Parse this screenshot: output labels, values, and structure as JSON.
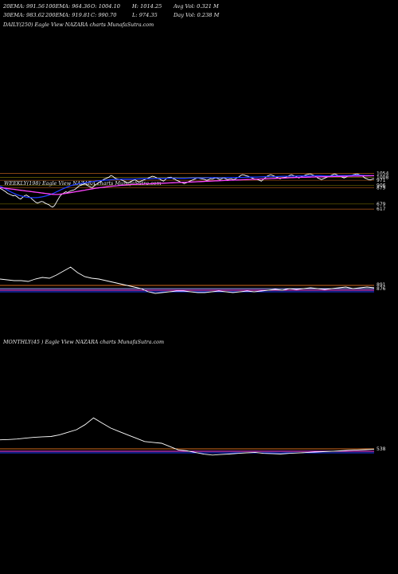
{
  "header": {
    "row1": [
      "20EMA: 991.56",
      "100EMA: 964.36",
      "O: 1004.10",
      "H: 1014.25",
      "Avg Vol: 0.321 M"
    ],
    "row2": [
      "30EMA: 983.62",
      "200EMA: 919.81",
      "C: 990.70",
      "L: 974.35",
      "Day Vol: 0.238 M"
    ]
  },
  "daily_label": "DAILY(250) Eagle  View  NAZARA charts MunafaSutra.com",
  "weekly_label": "WEEKLY(198) Eagle  View  NAZARA charts MunafaSutra.com",
  "monthly_label": "MONTHLY(45                    ) Eagle  View  NAZARA charts MunafaSutra.com",
  "colors": {
    "price": "#ffffff",
    "ema_fast": "#1e3cff",
    "ema_slow": "#ff44ff",
    "ema_mid": "#9aa0ff",
    "orange": "#d2691e",
    "olive": "#8b8000"
  },
  "chart_data": [
    {
      "type": "line",
      "title": "WEEKLY(198) Eagle View NAZARA charts MunafaSutra.com",
      "y_ticks": [
        "1054",
        "1008",
        "971",
        "906",
        "879",
        "679",
        "617"
      ],
      "y_tick_values": [
        1054,
        1008,
        971,
        906,
        879,
        679,
        617
      ],
      "ylim": [
        560,
        1090
      ],
      "series": [
        {
          "values": [
            870,
            860,
            845,
            830,
            810,
            800,
            790,
            780,
            785,
            770,
            750,
            740,
            760,
            780,
            790,
            775,
            760,
            740,
            720,
            700,
            690,
            700,
            710,
            705,
            690,
            680,
            670,
            650,
            640,
            660,
            700,
            740,
            780,
            800,
            815,
            830,
            820,
            835,
            845,
            850,
            860,
            880,
            900,
            910,
            920,
            930,
            915,
            900,
            890,
            880,
            900,
            920,
            930,
            950,
            960,
            980,
            990,
            1000,
            1010,
            1030,
            1020,
            1000,
            990,
            985,
            980,
            970,
            960,
            950,
            940,
            950,
            960,
            970,
            975,
            960,
            950,
            960,
            970,
            980,
            990,
            1000,
            1010,
            1020,
            1015,
            1005,
            990,
            985,
            970,
            960,
            980,
            1000,
            1005,
            1010,
            990,
            985,
            970,
            960,
            950,
            940,
            930,
            940,
            950,
            960,
            970,
            980,
            990,
            1000,
            995,
            990,
            985,
            980,
            970,
            980,
            990,
            985,
            995,
            1000,
            990,
            980,
            990,
            1000,
            990,
            980,
            985,
            990,
            980,
            985,
            1000,
            1010,
            1030,
            1040,
            1035,
            1025,
            1020,
            1010,
            1000,
            990,
            985,
            980,
            970,
            960,
            980,
            1000,
            1020,
            1030,
            1040,
            1030,
            1020,
            1010,
            1000,
            990,
            1000,
            1005,
            1010,
            1020,
            1030,
            1040,
            1030,
            1020,
            1010,
            1000,
            1010,
            1020,
            1030,
            1040,
            1045,
            1050,
            1040,
            1030,
            1020,
            1000,
            990,
            980,
            990,
            1000,
            1010,
            1020,
            1030,
            1040,
            1050,
            1040,
            1030,
            1020,
            1010,
            1000,
            1010,
            1020,
            1025,
            1030,
            1040,
            1045,
            1050,
            1040,
            1030,
            1020,
            1000,
            990,
            980,
            975,
            985,
            990
          ]
        },
        {
          "values": [
            900,
            888,
            875,
            862,
            849,
            836,
            823,
            812,
            802,
            793,
            785,
            778,
            772,
            767,
            763,
            760,
            758,
            757,
            757,
            758,
            760,
            763,
            767,
            772,
            778,
            785,
            793,
            802,
            812,
            823,
            834,
            846,
            857,
            868,
            878,
            888,
            897,
            905,
            912,
            918,
            923,
            928,
            932,
            936,
            940,
            944,
            948,
            951,
            954,
            957,
            960,
            963,
            966,
            968,
            970,
            972,
            974,
            976,
            978,
            980,
            981,
            982,
            983,
            984,
            985,
            985,
            985,
            985,
            985,
            985,
            986,
            987,
            988,
            989,
            990,
            990,
            990,
            990,
            990,
            991,
            992,
            993,
            994,
            994,
            994,
            994,
            994,
            995,
            996,
            997,
            998,
            998,
            997,
            996,
            995,
            995,
            995,
            996,
            997,
            998,
            999,
            1000,
            1000,
            1000,
            1000,
            1000,
            1000,
            1001,
            1002,
            1003,
            1004,
            1004,
            1004,
            1003,
            1002,
            1002,
            1002,
            1003,
            1004,
            1005,
            1006,
            1006,
            1006,
            1005,
            1005,
            1005,
            1006,
            1007,
            1008,
            1009,
            1010,
            1010,
            1010,
            1010,
            1010,
            1011,
            1012,
            1013,
            1014,
            1015,
            1015,
            1015,
            1015,
            1015,
            1016,
            1017,
            1018,
            1019,
            1020,
            1020,
            1020,
            1020,
            1020,
            1021,
            1022,
            1023,
            1024,
            1024,
            1024,
            1024,
            1024,
            1024,
            1025,
            1026,
            1027,
            1028,
            1028,
            1028,
            1027,
            1026,
            1025,
            1025,
            1025,
            1026,
            1027,
            1028,
            1029,
            1030,
            1030,
            1030,
            1030,
            1030,
            1031,
            1032,
            1033,
            1034,
            1034,
            1034,
            1033,
            1032,
            1031,
            1030,
            1029,
            1028,
            1027,
            1026
          ]
        },
        {
          "values": [
            880,
            878,
            875,
            872,
            869,
            866,
            863,
            860,
            857,
            854,
            851,
            848,
            845,
            842,
            839,
            836,
            833,
            830,
            827,
            824,
            821,
            818,
            815,
            812,
            809,
            806,
            803,
            800,
            798,
            797,
            797,
            798,
            800,
            803,
            806,
            810,
            814,
            818,
            822,
            826,
            830,
            834,
            838,
            842,
            846,
            850,
            854,
            858,
            862,
            866,
            870,
            874,
            877,
            880,
            883,
            886,
            889,
            892,
            895,
            898,
            900,
            902,
            904,
            906,
            908,
            910,
            912,
            914,
            916,
            918,
            919,
            920,
            921,
            922,
            923,
            924,
            925,
            926,
            927,
            928,
            929,
            930,
            931,
            932,
            933,
            934,
            935,
            936,
            937,
            938,
            939,
            940,
            941,
            942,
            943,
            944,
            945,
            946,
            947,
            948,
            949,
            950,
            951,
            952,
            953,
            954,
            955,
            956,
            957,
            958,
            959,
            960,
            961,
            962,
            963,
            964,
            965,
            966,
            967,
            968,
            969,
            970,
            971,
            972,
            973,
            974,
            975,
            976,
            977,
            978,
            979,
            980,
            981,
            982,
            983,
            984,
            985,
            986,
            987,
            988,
            989,
            990,
            991,
            992,
            993,
            994,
            995,
            996,
            997,
            998,
            999,
            1000,
            1001,
            1002,
            1003,
            1004,
            1005,
            1006,
            1007,
            1008,
            1008,
            1009,
            1009,
            1010,
            1010,
            1011,
            1011,
            1012,
            1012,
            1013,
            1013,
            1014,
            1014,
            1015,
            1015,
            1016,
            1016,
            1017,
            1017,
            1018,
            1018,
            1019,
            1019,
            1020,
            1020,
            1021,
            1021,
            1022,
            1022,
            1023,
            1023,
            1024,
            1024,
            1025,
            1025,
            1026,
            1026,
            1027,
            1027
          ]
        }
      ]
    },
    {
      "type": "line",
      "title": "MONTHLY(45) Eagle View NAZARA charts MunafaSutra.com",
      "y_ticks": [
        "538"
      ],
      "y_tick_values": [
        538
      ],
      "series": [
        {
          "values": [
            1050,
            1052,
            1055,
            1060,
            1065,
            1068,
            1070,
            1080,
            1095,
            1110,
            1140,
            1180,
            1150,
            1120,
            1100,
            1080,
            1060,
            1040,
            1035,
            1030,
            1010,
            990,
            985,
            975,
            965,
            960,
            963,
            966,
            970,
            973,
            976,
            970,
            968,
            966,
            970,
            972,
            975,
            978,
            980,
            982,
            985,
            988,
            990,
            992,
            995
          ]
        }
      ]
    }
  ]
}
